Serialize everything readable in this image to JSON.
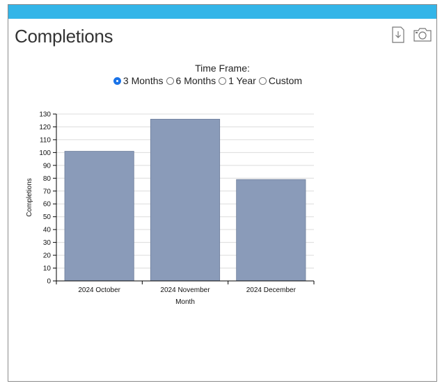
{
  "panel": {
    "title": "Completions",
    "icons": {
      "download": "download-icon",
      "camera": "camera-icon"
    }
  },
  "timeframe": {
    "label": "Time Frame:",
    "options": [
      "3 Months",
      "6 Months",
      "1 Year",
      "Custom"
    ],
    "selected": "3 Months"
  },
  "colors": {
    "topbar": "#33b5e8",
    "bar": "#8a9bb9",
    "bar_stroke": "#6f7f9c"
  },
  "chart_data": {
    "type": "bar",
    "categories": [
      "2024 October",
      "2024 November",
      "2024 December"
    ],
    "values": [
      101,
      126,
      79
    ],
    "xlabel": "Month",
    "ylabel": "Completions",
    "ylim": [
      0,
      130
    ],
    "yticks": [
      0,
      10,
      20,
      30,
      40,
      50,
      60,
      70,
      80,
      90,
      100,
      110,
      120,
      130
    ],
    "grid": true
  }
}
